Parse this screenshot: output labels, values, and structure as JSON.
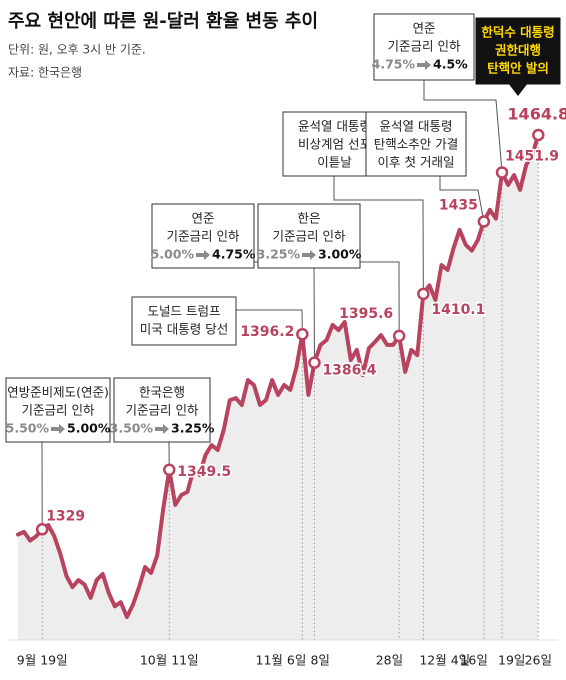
{
  "chart_data": {
    "type": "line",
    "title": "주요 현안에 따른 원-달러 환율 변동 추이",
    "subtitle": "단위: 원, 오후 3시 반 기준.",
    "source": "자료: 한국은행",
    "color": "#b8435e",
    "categories": [
      null,
      null,
      null,
      null,
      "9월 19일",
      null,
      null,
      null,
      null,
      null,
      null,
      null,
      null,
      null,
      null,
      null,
      null,
      null,
      null,
      null,
      null,
      null,
      null,
      null,
      null,
      "10월 11일",
      null,
      null,
      null,
      null,
      null,
      null,
      null,
      null,
      null,
      null,
      null,
      null,
      null,
      null,
      null,
      null,
      null,
      null,
      null,
      null,
      null,
      "11월 6일",
      null,
      "8일",
      null,
      null,
      null,
      null,
      null,
      null,
      null,
      null,
      null,
      null,
      null,
      null,
      null,
      "28일",
      null,
      null,
      null,
      "12월 4일",
      null,
      null,
      null,
      null,
      null,
      null,
      null,
      null,
      null,
      "16일",
      null,
      null,
      "19일",
      null,
      null,
      null,
      null,
      null,
      "26일"
    ],
    "values": [
      1327.2,
      1328.1,
      1325.1,
      1326.6,
      1329,
      1330.5,
      1326.6,
      1320.5,
      1313.0,
      1309.1,
      1311.5,
      1310.0,
      1305.4,
      1311.5,
      1313.6,
      1307.0,
      1302.5,
      1303.9,
      1298.8,
      1303,
      1309,
      1316,
      1314,
      1320,
      1336,
      1349.5,
      1337.4,
      1340.8,
      1341.9,
      1349.4,
      1347.7,
      1354.6,
      1358.0,
      1356.3,
      1363.2,
      1373.5,
      1374.2,
      1371.8,
      1380.4,
      1378.7,
      1371.8,
      1373.5,
      1380.4,
      1375.3,
      1378.7,
      1377.0,
      1384.6,
      1396.2,
      1375.3,
      1386.4,
      1392.5,
      1394.2,
      1399.4,
      1397.6,
      1400.4,
      1387.3,
      1390.8,
      1382.1,
      1391.4,
      1393.5,
      1395.9,
      1392.5,
      1392.5,
      1395.6,
      1383.2,
      1390.8,
      1389.0,
      1410.1,
      1413,
      1408,
      1420,
      1418.3,
      1425.9,
      1432.1,
      1427,
      1425,
      1428.6,
      1435,
      1439,
      1436,
      1451.9,
      1447.6,
      1451,
      1445.9,
      1454.5,
      1458,
      1464.8
    ],
    "value_labels": [
      null,
      null,
      null,
      null,
      "1329",
      null,
      null,
      null,
      null,
      null,
      null,
      null,
      null,
      null,
      null,
      null,
      null,
      null,
      null,
      null,
      null,
      null,
      null,
      null,
      null,
      "1349.5",
      null,
      null,
      null,
      null,
      null,
      null,
      null,
      null,
      null,
      null,
      null,
      null,
      null,
      null,
      null,
      null,
      null,
      null,
      null,
      null,
      null,
      "1396.2",
      null,
      "1386.4",
      null,
      null,
      null,
      null,
      null,
      null,
      null,
      null,
      null,
      null,
      null,
      null,
      null,
      "1395.6",
      null,
      null,
      null,
      "1410.1",
      null,
      null,
      null,
      null,
      null,
      null,
      null,
      null,
      null,
      "1435",
      null,
      null,
      "1451.9",
      null,
      null,
      null,
      null,
      null,
      "1464.8"
    ],
    "annotations": [
      {
        "lines": [
          "연방준비제도(연준)",
          "기준금리 인하"
        ],
        "rate": {
          "from": "5.50%",
          "to": "5.00%"
        }
      },
      {
        "lines": [
          "한국은행",
          "기준금리 인하"
        ],
        "rate": {
          "from": "3.50%",
          "to": "3.25%"
        }
      },
      {
        "lines": [
          "도널드 트럼프",
          "미국 대통령 당선"
        ]
      },
      {
        "lines": [
          "연준",
          "기준금리 인하"
        ],
        "rate": {
          "from": "5.00%",
          "to": "4.75%"
        }
      },
      {
        "lines": [
          "한은",
          "기준금리 인하"
        ],
        "rate": {
          "from": "3.25%",
          "to": "3.00%"
        }
      },
      {
        "lines": [
          "윤석열 대통령",
          "비상계엄 선포",
          "이튿날"
        ]
      },
      {
        "lines": [
          "윤석열 대통령",
          "탄핵소추안 가결",
          "이후 첫 거래일"
        ]
      },
      {
        "lines": [
          "연준",
          "기준금리 인하"
        ],
        "rate": {
          "from": "4.75%",
          "to": "4.5%"
        }
      },
      {
        "lines": [
          "한덕수 대통령",
          "권한대행",
          "탄핵안 발의"
        ]
      }
    ]
  }
}
